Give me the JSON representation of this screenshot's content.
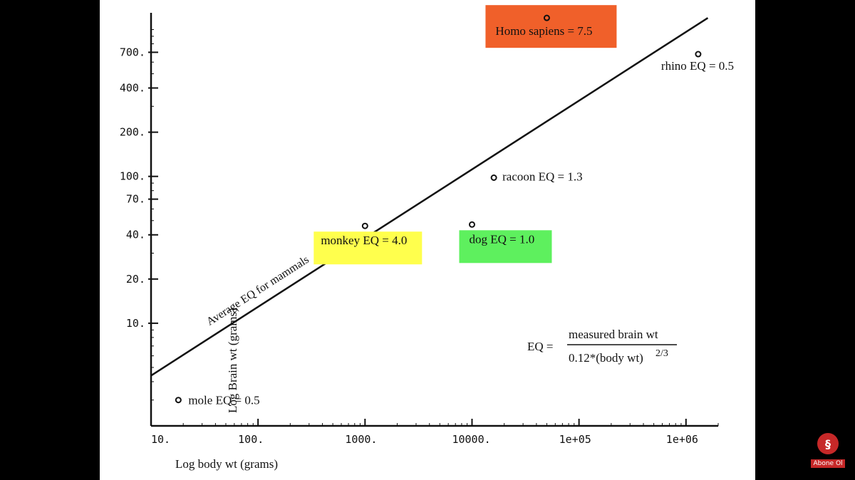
{
  "chart_data": {
    "type": "scatter",
    "xscale": "log",
    "yscale": "log",
    "xlabel": "Log body wt (grams)",
    "ylabel": "Log Brain wt (grams)",
    "xticks": [
      10,
      100,
      1000,
      10000,
      100000,
      1000000
    ],
    "xtick_labels": [
      "10.",
      "100.",
      "1000.",
      "10000.",
      "1e+05",
      "1e+06"
    ],
    "yticks": [
      10,
      20,
      40,
      70,
      100,
      200,
      400,
      700
    ],
    "ytick_labels": [
      "10.",
      "20.",
      "40.",
      "70.",
      "100.",
      "200.",
      "400.",
      "700."
    ],
    "xlim": [
      10,
      2000000
    ],
    "ylim": [
      2,
      1300
    ],
    "points": [
      {
        "x": 18,
        "y": 3,
        "label": "mole EQ = 0.5",
        "highlight": ""
      },
      {
        "x": 1000,
        "y": 46,
        "label": "monkey EQ = 4.0",
        "highlight": "#ffff4d"
      },
      {
        "x": 10000,
        "y": 47,
        "label": "dog EQ = 1.0",
        "highlight": "#5ef05e"
      },
      {
        "x": 16000,
        "y": 98,
        "label": "racoon EQ = 1.3",
        "highlight": ""
      },
      {
        "x": 50000,
        "y": 1200,
        "label": "Homo sapiens = 7.5",
        "highlight": "#f0602a"
      },
      {
        "x": 1300000,
        "y": 680,
        "label": "rhino EQ = 0.5",
        "highlight": ""
      }
    ],
    "trend_line": {
      "label": "Average EQ for mammals",
      "x": [
        10,
        1600000
      ],
      "y": [
        4.4,
        1200
      ]
    },
    "formula": {
      "lhs": "EQ =",
      "numerator": "measured brain wt",
      "denominator": "0.12*(body wt)",
      "exponent": "2/3"
    }
  },
  "subscribe_label": "Abone Ol"
}
